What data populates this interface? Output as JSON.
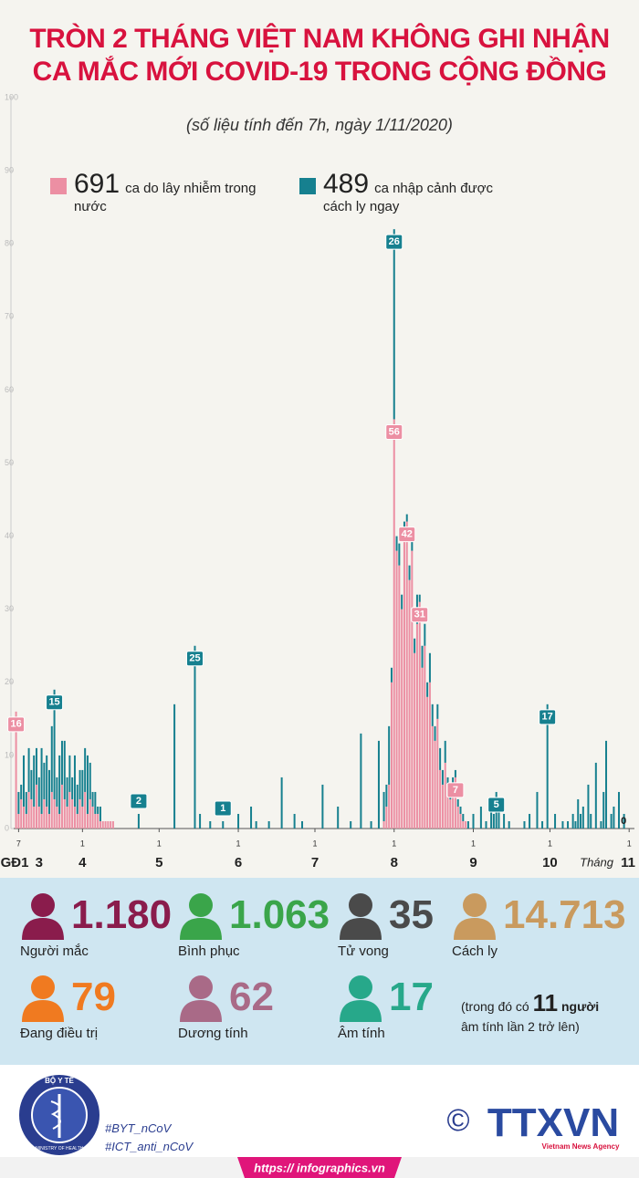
{
  "title_lines": [
    "TRÒN 2 THÁNG  VIỆT NAM KHÔNG GHI NHẬN",
    "CA MẮC MỚI COVID-19 TRONG CỘNG ĐỒNG"
  ],
  "chart_data": {
    "type": "bar",
    "stacked": true,
    "subtitle": "(số liệu tính đến 7h, ngày 1/11/2020)",
    "x": [
      6,
      7,
      8,
      9,
      10,
      11,
      12,
      13,
      14,
      15,
      16,
      17,
      18,
      19,
      20,
      21,
      22,
      23,
      24,
      25,
      26,
      27,
      28,
      29,
      30,
      31,
      32,
      33,
      34,
      35,
      36,
      37,
      38,
      39,
      40,
      41,
      42,
      43,
      44,
      54,
      68,
      76,
      78,
      82,
      87,
      93,
      98,
      100,
      105,
      110,
      115,
      118,
      126,
      132,
      137,
      141,
      145,
      148,
      150,
      151,
      152,
      153,
      154,
      155,
      156,
      157,
      158,
      159,
      160,
      161,
      162,
      163,
      164,
      165,
      166,
      167,
      168,
      169,
      170,
      171,
      172,
      173,
      174,
      175,
      176,
      177,
      178,
      179,
      180,
      181,
      182,
      183,
      185,
      188,
      190,
      192,
      193,
      194,
      195,
      197,
      199,
      205,
      207,
      210,
      212,
      214,
      217,
      220,
      222,
      224,
      225,
      226,
      227,
      228,
      230,
      231,
      233,
      235,
      236,
      237,
      239,
      240,
      242,
      244,
      246
    ],
    "series": [
      {
        "name": "ca do lây nhiễm trong nước",
        "total": "691",
        "color": "#ec8fa3",
        "values": [
          16,
          2,
          4,
          3,
          2,
          5,
          4,
          3,
          6,
          3,
          2,
          4,
          3,
          2,
          5,
          4,
          3,
          2,
          6,
          4,
          3,
          5,
          4,
          3,
          2,
          4,
          3,
          5,
          2,
          4,
          3,
          2,
          2,
          1,
          1,
          1,
          1,
          1,
          1,
          0,
          0,
          0,
          0,
          0,
          0,
          0,
          0,
          0,
          0,
          0,
          0,
          0,
          0,
          0,
          0,
          0,
          0,
          0,
          1,
          3,
          6,
          20,
          56,
          38,
          36,
          30,
          40,
          42,
          34,
          38,
          24,
          28,
          31,
          22,
          25,
          18,
          20,
          14,
          12,
          15,
          8,
          6,
          9,
          5,
          4,
          6,
          7,
          3,
          2,
          1,
          1,
          0,
          0,
          0,
          0,
          0,
          0,
          0,
          0,
          0,
          0,
          0,
          0,
          0,
          0,
          0,
          0,
          0,
          0,
          0,
          0,
          0,
          0,
          0,
          0,
          0,
          0,
          0,
          0,
          0,
          0,
          0,
          0,
          0,
          0
        ],
        "value_labels": [
          "16",
          null,
          null,
          null,
          null,
          null,
          null,
          null,
          null,
          null,
          null,
          null,
          null,
          null,
          null,
          null,
          null,
          null,
          null,
          null,
          null,
          null,
          null,
          null,
          null,
          null,
          null,
          null,
          null,
          null,
          null,
          null,
          null,
          null,
          null,
          null,
          null,
          null,
          null,
          null,
          null,
          null,
          null,
          null,
          null,
          null,
          null,
          null,
          null,
          null,
          null,
          null,
          null,
          null,
          null,
          null,
          null,
          null,
          null,
          null,
          null,
          null,
          "56",
          null,
          null,
          null,
          null,
          "42",
          null,
          null,
          null,
          null,
          "31",
          null,
          null,
          null,
          null,
          null,
          null,
          null,
          null,
          null,
          null,
          null,
          null,
          null,
          "7",
          null,
          null,
          null,
          null,
          null,
          null,
          null,
          null,
          null,
          null,
          null,
          null,
          null,
          null,
          null,
          null,
          null,
          null,
          null,
          null,
          null,
          null,
          null,
          null,
          null,
          null,
          null,
          null,
          null,
          null,
          null,
          null,
          null,
          null,
          null,
          null,
          null,
          null
        ]
      },
      {
        "name": "ca nhập cảnh được cách ly ngay",
        "total": "489",
        "color": "#16808f",
        "values": [
          0,
          3,
          2,
          7,
          3,
          6,
          4,
          7,
          5,
          4,
          9,
          5,
          7,
          6,
          9,
          15,
          4,
          8,
          6,
          8,
          4,
          5,
          3,
          7,
          4,
          4,
          5,
          6,
          8,
          5,
          2,
          3,
          1,
          2,
          0,
          0,
          0,
          0,
          0,
          2,
          17,
          25,
          2,
          1,
          1,
          2,
          3,
          1,
          1,
          7,
          2,
          1,
          6,
          3,
          1,
          13,
          1,
          12,
          4,
          3,
          8,
          2,
          26,
          2,
          3,
          2,
          2,
          1,
          2,
          3,
          2,
          4,
          1,
          3,
          3,
          2,
          4,
          3,
          2,
          2,
          3,
          2,
          3,
          2,
          1,
          1,
          1,
          1,
          1,
          1,
          0,
          1,
          2,
          3,
          1,
          3,
          2,
          5,
          4,
          2,
          1,
          1,
          2,
          5,
          1,
          17,
          2,
          1,
          1,
          2,
          1,
          4,
          2,
          3,
          6,
          2,
          9,
          1,
          5,
          12,
          2,
          3,
          5,
          2,
          0
        ],
        "value_labels": [
          null,
          null,
          null,
          null,
          null,
          null,
          null,
          null,
          null,
          null,
          null,
          null,
          null,
          null,
          null,
          "15",
          null,
          null,
          null,
          null,
          null,
          null,
          null,
          null,
          null,
          null,
          null,
          null,
          null,
          null,
          null,
          null,
          null,
          null,
          null,
          null,
          null,
          null,
          null,
          "2",
          null,
          "25",
          null,
          null,
          "1",
          null,
          null,
          null,
          null,
          null,
          null,
          null,
          null,
          null,
          null,
          null,
          null,
          null,
          null,
          null,
          null,
          null,
          "26",
          null,
          null,
          null,
          null,
          null,
          null,
          null,
          null,
          null,
          null,
          null,
          null,
          null,
          null,
          null,
          null,
          null,
          null,
          null,
          null,
          null,
          null,
          null,
          null,
          null,
          null,
          null,
          null,
          null,
          null,
          null,
          null,
          null,
          null,
          "5",
          null,
          null,
          null,
          null,
          null,
          null,
          null,
          "17",
          null,
          null,
          null,
          null,
          null,
          null,
          null,
          null,
          null,
          null,
          null,
          null,
          null,
          null,
          null,
          null,
          null,
          null,
          "0"
        ]
      }
    ],
    "xlim": [
      4,
      247
    ],
    "xticks": [
      {
        "value": 7,
        "label": "7"
      },
      {
        "value": 32,
        "label": "1"
      },
      {
        "value": 62,
        "label": "1"
      },
      {
        "value": 93,
        "label": "1"
      },
      {
        "value": 123,
        "label": "1"
      },
      {
        "value": 154,
        "label": "1"
      },
      {
        "value": 185,
        "label": "1"
      },
      {
        "value": 215,
        "label": "1"
      },
      {
        "value": 246,
        "label": "1"
      }
    ],
    "x_month_ticks": [
      {
        "value": 4,
        "label": "GĐ1"
      },
      {
        "value": 15,
        "label": "3"
      },
      {
        "value": 32,
        "label": "4"
      },
      {
        "value": 62,
        "label": "5"
      },
      {
        "value": 93,
        "label": "6"
      },
      {
        "value": 123,
        "label": "7"
      },
      {
        "value": 154,
        "label": "8"
      },
      {
        "value": 185,
        "label": "9"
      },
      {
        "value": 215,
        "label": "10"
      },
      {
        "value": 246,
        "label": "11"
      }
    ],
    "x_label": "Tháng",
    "ylim": [
      0,
      100
    ],
    "yticks": [
      0,
      10,
      20,
      30,
      40,
      50,
      60,
      70,
      80,
      90,
      100
    ],
    "grid": false
  },
  "stats": [
    {
      "value": "1.180",
      "label": "Người mắc"
    },
    {
      "value": "1.063",
      "label": "Bình phục"
    },
    {
      "value": "35",
      "label": "Tử vong"
    },
    {
      "value": "14.713",
      "label": "Cách ly"
    },
    {
      "value": "79",
      "label": "Đang điều trị"
    },
    {
      "value": "62",
      "label": "Dương tính"
    },
    {
      "value": "17",
      "label": "Âm tính"
    }
  ],
  "note": {
    "before": "(trong đó có",
    "number": "11",
    "after": "người",
    "line2": "âm tính lần 2 trở lên)"
  },
  "footer": {
    "logo_top": "BỘ Y TẾ",
    "logo_bottom": "MINISTRY OF HEALTH",
    "tags": [
      "#BYT_nCoV",
      "#ICT_anti_nCoV"
    ],
    "copyright": "©",
    "agency": "TTXVN",
    "agency_sub": "Vietnam News Agency",
    "url": "https:// infographics.vn"
  }
}
